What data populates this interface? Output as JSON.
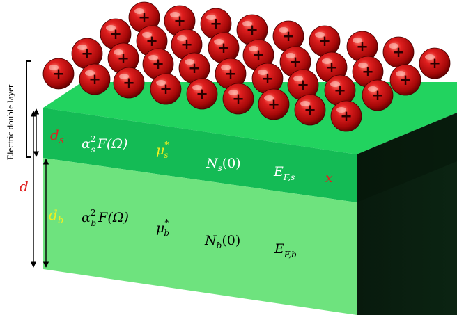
{
  "side_label": "Electric double layer",
  "labels": {
    "d": "d",
    "d_s": {
      "base": "d",
      "sub": "s"
    },
    "d_b": {
      "base": "d",
      "sub": "b"
    },
    "x": "x"
  },
  "surface_layer": {
    "alpha2F": {
      "base": "α",
      "sup": "2",
      "sub": "s",
      "rest": "F(Ω)"
    },
    "mu": {
      "base": "μ",
      "sup": "*",
      "sub": "s"
    },
    "N": {
      "base": "N",
      "sub": "s",
      "rest": "(0)"
    },
    "E": {
      "base": "E",
      "sub": "F,s"
    }
  },
  "bulk_layer": {
    "alpha2F": {
      "base": "α",
      "sup": "2",
      "sub": "b",
      "rest": "F(Ω)"
    },
    "mu": {
      "base": "μ",
      "sup": "*",
      "sub": "b"
    },
    "N": {
      "base": "N",
      "sub": "b",
      "rest": "(0)"
    },
    "E": {
      "base": "E",
      "sub": "F,b"
    }
  },
  "ion_symbol": "+",
  "colors": {
    "top_face": "#22d35f",
    "surface_layer": "#14bb55",
    "bulk_layer": "#6ee37e",
    "side_dark": "#0a1f10",
    "ion": "#cc1a1a",
    "accent_red": "#e02020",
    "accent_yellow": "#f0f020"
  }
}
